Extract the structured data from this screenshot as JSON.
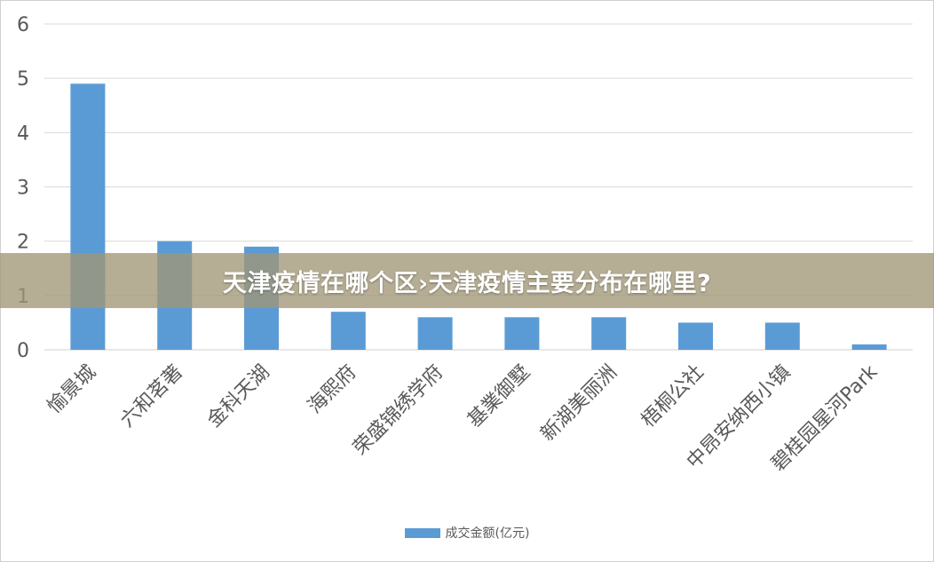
{
  "banner": {
    "title": "天津疫情在哪个区›天津疫情主要分布在哪里?"
  },
  "chart_data": {
    "type": "bar",
    "categories": [
      "愉景城",
      "六和茗著",
      "金科天湖",
      "海熙府",
      "荣盛锦绣学府",
      "基業御墅",
      "新湖美丽洲",
      "梧桐公社",
      "中昂安纳西小镇",
      "碧桂园星河Park"
    ],
    "series": [
      {
        "name": "成交金额(亿元)",
        "values": [
          4.9,
          2.0,
          1.9,
          0.7,
          0.6,
          0.6,
          0.6,
          0.5,
          0.5,
          0.1
        ],
        "color": "#5b9bd5"
      }
    ],
    "yticks": [
      "0",
      "1",
      "2",
      "3",
      "4",
      "5",
      "6"
    ],
    "ylim": [
      0,
      6
    ],
    "grid": true,
    "legend_position": "bottom",
    "grid_color": "#d9d9d9",
    "tick_color": "#595959"
  }
}
